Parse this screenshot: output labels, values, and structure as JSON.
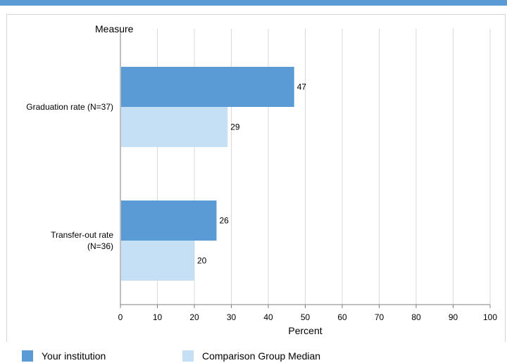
{
  "colors": {
    "accent": "#5b9bd5",
    "your_institution": "#5b9bd5",
    "comparison": "#c5e0f4",
    "grid": "#d9d9d9"
  },
  "chart_data": {
    "type": "bar",
    "orientation": "horizontal",
    "yaxis_title": "Measure",
    "xlabel": "Percent",
    "xlim": [
      0,
      100
    ],
    "ticks": [
      0,
      10,
      20,
      30,
      40,
      50,
      60,
      70,
      80,
      90,
      100
    ],
    "grid": true,
    "legend_position": "bottom",
    "categories": [
      {
        "label_lines": [
          "Graduation rate (N=37)"
        ]
      },
      {
        "label_lines": [
          "Transfer-out rate",
          "(N=36)"
        ]
      }
    ],
    "series": [
      {
        "name": "Your institution",
        "color": "#5b9bd5",
        "values": [
          47,
          26
        ]
      },
      {
        "name": "Comparison Group Median",
        "color": "#c5e0f4",
        "values": [
          29,
          20
        ]
      }
    ]
  }
}
